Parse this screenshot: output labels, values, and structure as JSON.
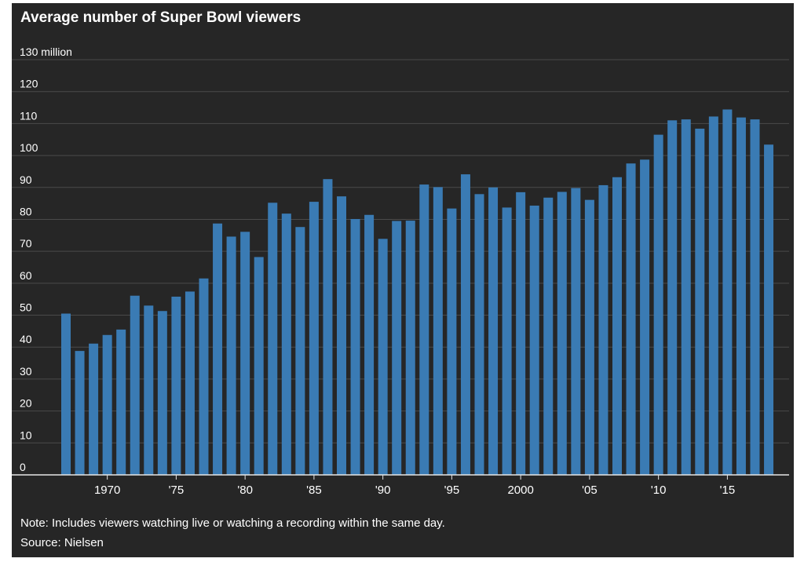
{
  "title": "Average number of Super Bowl viewers",
  "note": "Note: Includes viewers watching live or watching a recording within the same day.",
  "source": "Source: Nielsen",
  "colors": {
    "background": "#262626",
    "bar": "#3a7bb4",
    "grid": "#4a4a4a",
    "text": "#ffffff"
  },
  "chart_data": {
    "type": "bar",
    "title": "Average number of Super Bowl viewers",
    "xlabel": "",
    "ylabel": "",
    "y_unit_label": "130 million",
    "ylim": [
      0,
      130
    ],
    "y_ticks": [
      0,
      10,
      20,
      30,
      40,
      50,
      60,
      70,
      80,
      90,
      100,
      110,
      120,
      130
    ],
    "y_tick_labels": [
      "0",
      "10",
      "20",
      "30",
      "40",
      "50",
      "60",
      "70",
      "80",
      "90",
      "100",
      "110",
      "120",
      "130 million"
    ],
    "grid": true,
    "x_tick_years": [
      1970,
      1975,
      1980,
      1985,
      1990,
      1995,
      2000,
      2005,
      2010,
      2015
    ],
    "x_tick_labels": [
      "1970",
      "'75",
      "'80",
      "'85",
      "'90",
      "'95",
      "2000",
      "'05",
      "'10",
      "'15"
    ],
    "categories": [
      1967,
      1968,
      1969,
      1970,
      1971,
      1972,
      1973,
      1974,
      1975,
      1976,
      1977,
      1978,
      1979,
      1980,
      1981,
      1982,
      1983,
      1984,
      1985,
      1986,
      1987,
      1988,
      1989,
      1990,
      1991,
      1992,
      1993,
      1994,
      1995,
      1996,
      1997,
      1998,
      1999,
      2000,
      2001,
      2002,
      2003,
      2004,
      2005,
      2006,
      2007,
      2008,
      2009,
      2010,
      2011,
      2012,
      2013,
      2014,
      2015,
      2016,
      2017,
      2018
    ],
    "values": [
      50.5,
      38.8,
      41.1,
      43.8,
      45.5,
      56.1,
      53,
      51.3,
      55.8,
      57.4,
      61.5,
      78.7,
      74.6,
      76.1,
      68.2,
      85.2,
      81.8,
      77.6,
      85.5,
      92.6,
      87.2,
      80.1,
      81.4,
      73.9,
      79.5,
      79.6,
      90.9,
      90.1,
      83.4,
      94.1,
      87.9,
      90,
      83.7,
      88.5,
      84.3,
      86.8,
      88.6,
      89.8,
      86.1,
      90.7,
      93.2,
      97.5,
      98.7,
      106.5,
      111,
      111.3,
      108.4,
      112.2,
      114.4,
      111.9,
      111.3,
      103.4
    ]
  }
}
